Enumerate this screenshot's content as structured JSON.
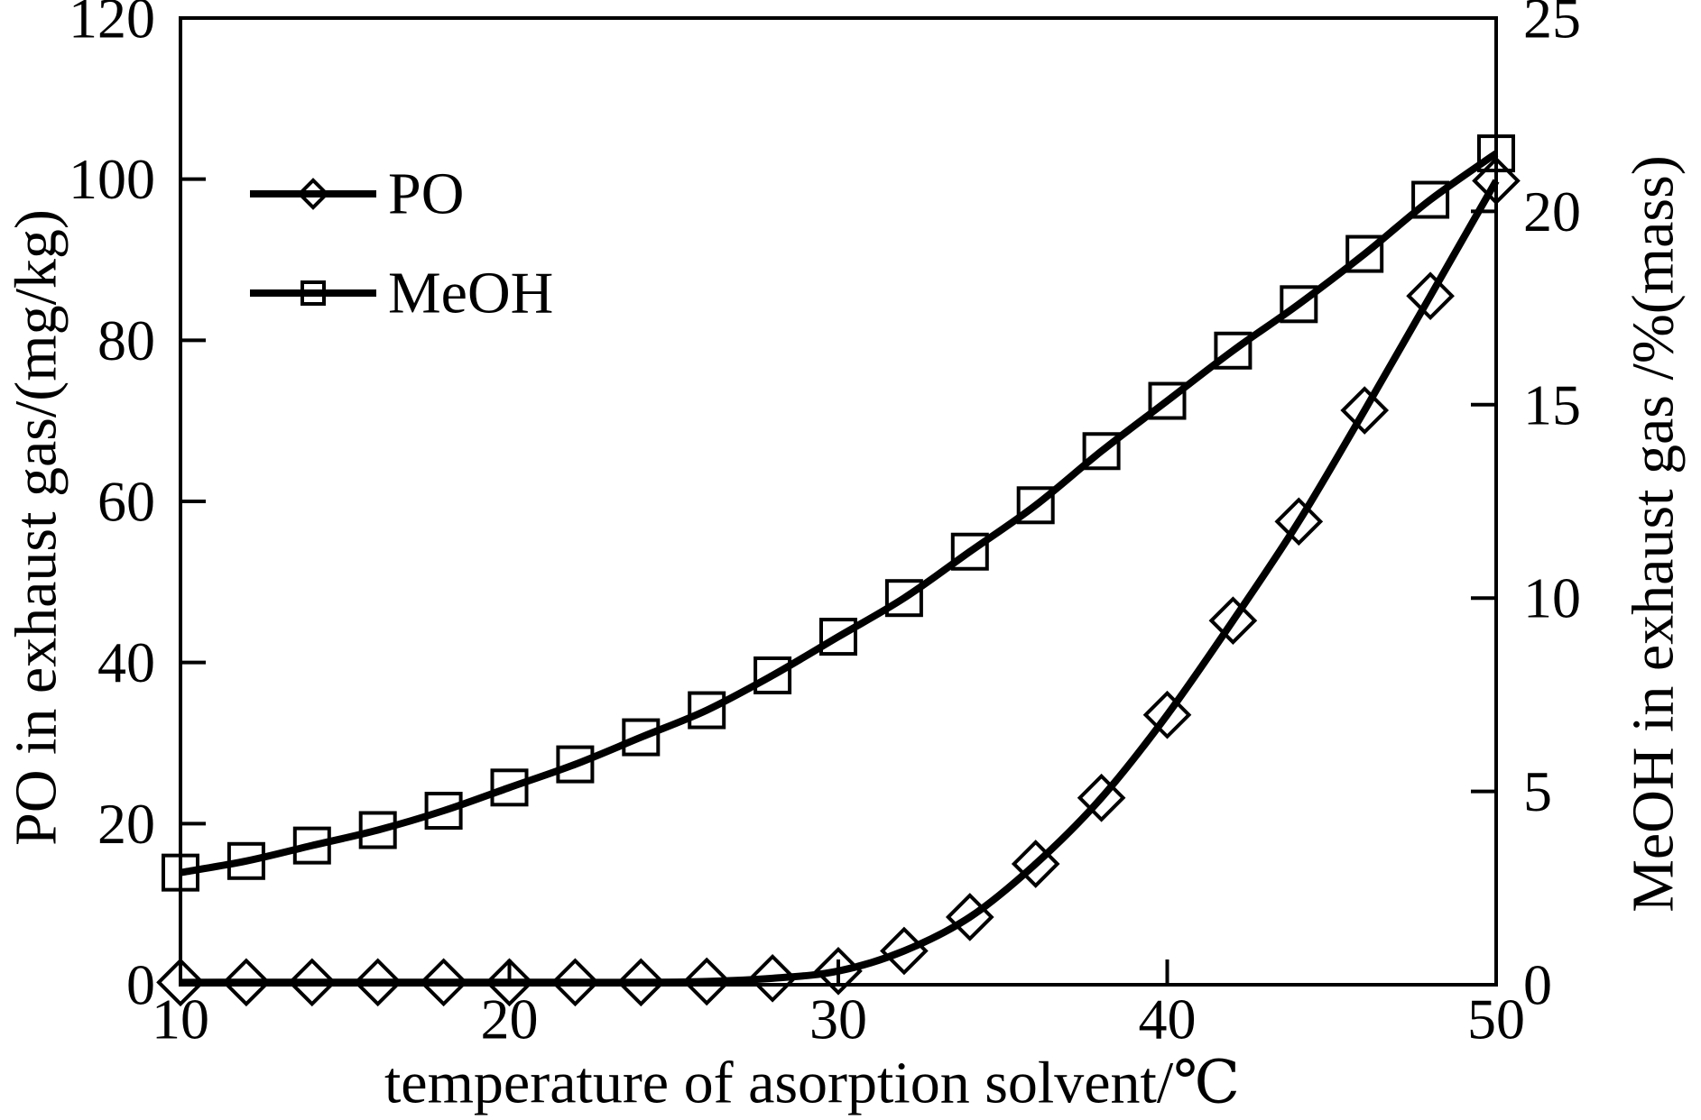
{
  "figure": {
    "background": "#ffffff",
    "axis_color": "#000000"
  },
  "chart_data": {
    "type": "line",
    "title": "",
    "x_label": "temperature of asorption solvent/℃",
    "y_left_label": "PO in exhaust gas/(mg/kg)",
    "y_right_label": "MeOH in exhaust gas /%(mass)",
    "x": [
      10,
      12,
      14,
      16,
      18,
      20,
      22,
      24,
      26,
      28,
      30,
      32,
      34,
      36,
      38,
      40,
      42,
      44,
      46,
      48,
      50
    ],
    "series": [
      {
        "name": "PO",
        "axis": "left",
        "marker": "diamond",
        "color": "#000000",
        "values": [
          0.3,
          0.3,
          0.3,
          0.3,
          0.3,
          0.3,
          0.3,
          0.3,
          0.4,
          0.8,
          1.7,
          4.2,
          8.4,
          15.0,
          23.2,
          33.5,
          45.2,
          57.5,
          71.3,
          85.5,
          99.8
        ]
      },
      {
        "name": "MeOH",
        "axis": "right",
        "marker": "square",
        "color": "#000000",
        "values": [
          2.9,
          3.2,
          3.6,
          4.0,
          4.5,
          5.1,
          5.7,
          6.4,
          7.1,
          8.0,
          9.0,
          10.0,
          11.2,
          12.4,
          13.8,
          15.1,
          16.4,
          17.6,
          18.9,
          20.3,
          21.5
        ]
      }
    ],
    "xlim": [
      10,
      50
    ],
    "ylim_left": [
      0,
      120
    ],
    "ylim_right": [
      0,
      25
    ],
    "x_tick_values": [
      10,
      20,
      30,
      40,
      50
    ],
    "x_tick_labels": [
      "10",
      "20",
      "30",
      "40",
      "50"
    ],
    "y_left_tick_values": [
      0,
      20,
      40,
      60,
      80,
      100,
      120
    ],
    "y_left_tick_labels": [
      "0",
      "20",
      "40",
      "60",
      "80",
      "100",
      "120"
    ],
    "y_right_tick_values": [
      0,
      5,
      10,
      15,
      20,
      25
    ],
    "y_right_tick_labels": [
      "0",
      "5",
      "10",
      "15",
      "20",
      "25"
    ],
    "grid": false,
    "legend_position": "top-left-inside",
    "line_color": "#000000"
  },
  "legend": {
    "items": [
      {
        "label": "PO",
        "marker": "diamond"
      },
      {
        "label": "MeOH",
        "marker": "square"
      }
    ]
  }
}
